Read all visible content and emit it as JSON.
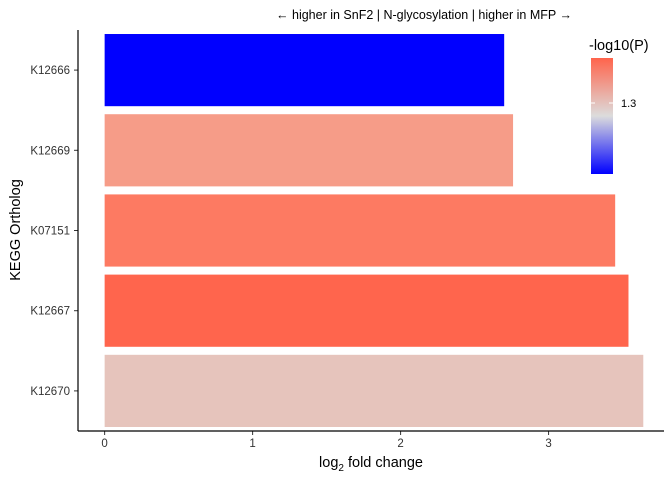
{
  "chart_data": {
    "type": "bar",
    "orientation": "horizontal",
    "title": "← higher in SnF2 | N-glycosylation | higher in MFP →",
    "xlabel_main": "log",
    "xlabel_sub": "2",
    "xlabel_rest": " fold change",
    "ylabel": "KEGG Ortholog",
    "categories": [
      "K12666",
      "K12669",
      "K07151",
      "K12667",
      "K12670"
    ],
    "values": [
      2.7,
      2.76,
      3.45,
      3.54,
      3.64
    ],
    "colors": [
      "#0000FF",
      "#F69C88",
      "#FD7A62",
      "#FF654D",
      "#E6C4BC"
    ],
    "xlim": [
      -0.18,
      3.78
    ],
    "xticks": [
      "0",
      "1",
      "2",
      "3"
    ],
    "grid": false,
    "legend": {
      "title": "-log10(P)",
      "tick_label": "1.3",
      "gradient": [
        "#FF644C",
        "#DCDCDC",
        "#0000FF"
      ],
      "placement": "top-right"
    }
  }
}
